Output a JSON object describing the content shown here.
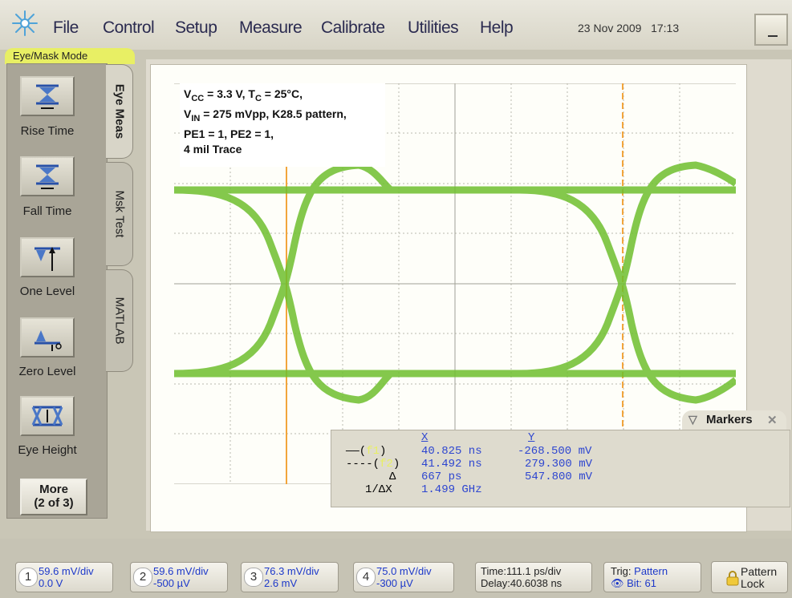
{
  "menubar": {
    "items": [
      "File",
      "Control",
      "Setup",
      "Measure",
      "Calibrate",
      "Utilities",
      "Help"
    ],
    "date": "23 Nov 2009",
    "time": "17:13"
  },
  "mode_label": "Eye/Mask Mode",
  "side_tabs": [
    "Eye Meas",
    "Msk Test",
    "MATLAB"
  ],
  "tools": [
    {
      "label": "Rise Time",
      "icon": "rise-time-icon"
    },
    {
      "label": "Fall Time",
      "icon": "fall-time-icon"
    },
    {
      "label": "One Level",
      "icon": "one-level-icon"
    },
    {
      "label": "Zero Level",
      "icon": "zero-level-icon"
    },
    {
      "label": "Eye Height",
      "icon": "eye-height-icon"
    }
  ],
  "more_button": {
    "line1": "More",
    "line2": "(2 of 3)"
  },
  "annotation": {
    "line1_a": "V",
    "line1_sub1": "CC",
    "line1_b": " = 3.3 V, T",
    "line1_sub2": "C",
    "line1_c": " = 25°C,",
    "line2_a": "V",
    "line2_sub": "IN",
    "line2_b": " = 275 mVpp, K28.5 pattern,",
    "line3": "PE1 = 1, PE2 = 1,",
    "line4": "4 mil Trace"
  },
  "markers": {
    "title": "Markers",
    "x_header": "X",
    "y_header": "Y",
    "rows": [
      {
        "label": "——(",
        "paren": ")",
        "x": "40.825 ns",
        "y": "-268.500 mV"
      },
      {
        "label": "----(",
        "paren": ")",
        "x": "41.492 ns",
        "y": "279.300 mV"
      },
      {
        "label": "Δ",
        "paren": "",
        "x": "667 ps",
        "y": "547.800 mV"
      },
      {
        "label": "1/ΔX",
        "paren": "",
        "x": "1.499 GHz",
        "y": ""
      }
    ],
    "marker_ids": [
      "f1",
      "f2"
    ]
  },
  "channels": [
    {
      "num": "1",
      "scale": "59.6 mV/div",
      "offset": "0.0 V"
    },
    {
      "num": "2",
      "scale": "59.6 mV/div",
      "offset": "-500 µV"
    },
    {
      "num": "3",
      "scale": "76.3 mV/div",
      "offset": "2.6 mV"
    },
    {
      "num": "4",
      "scale": "75.0 mV/div",
      "offset": "-300 µV"
    }
  ],
  "timebase": {
    "time": "Time:111.1 ps/div",
    "delay": "Delay:40.6038 ns"
  },
  "trigger": {
    "label": "Trig:",
    "source": "Pattern",
    "bit": "Bit: 61"
  },
  "pattern_lock": {
    "line1": "Pattern",
    "line2": "Lock"
  },
  "colors": {
    "trace": "#6fbf2f",
    "marker_line": "#f2a53c",
    "readout": "#2e46d0",
    "mode_label": "#e8ef64"
  }
}
